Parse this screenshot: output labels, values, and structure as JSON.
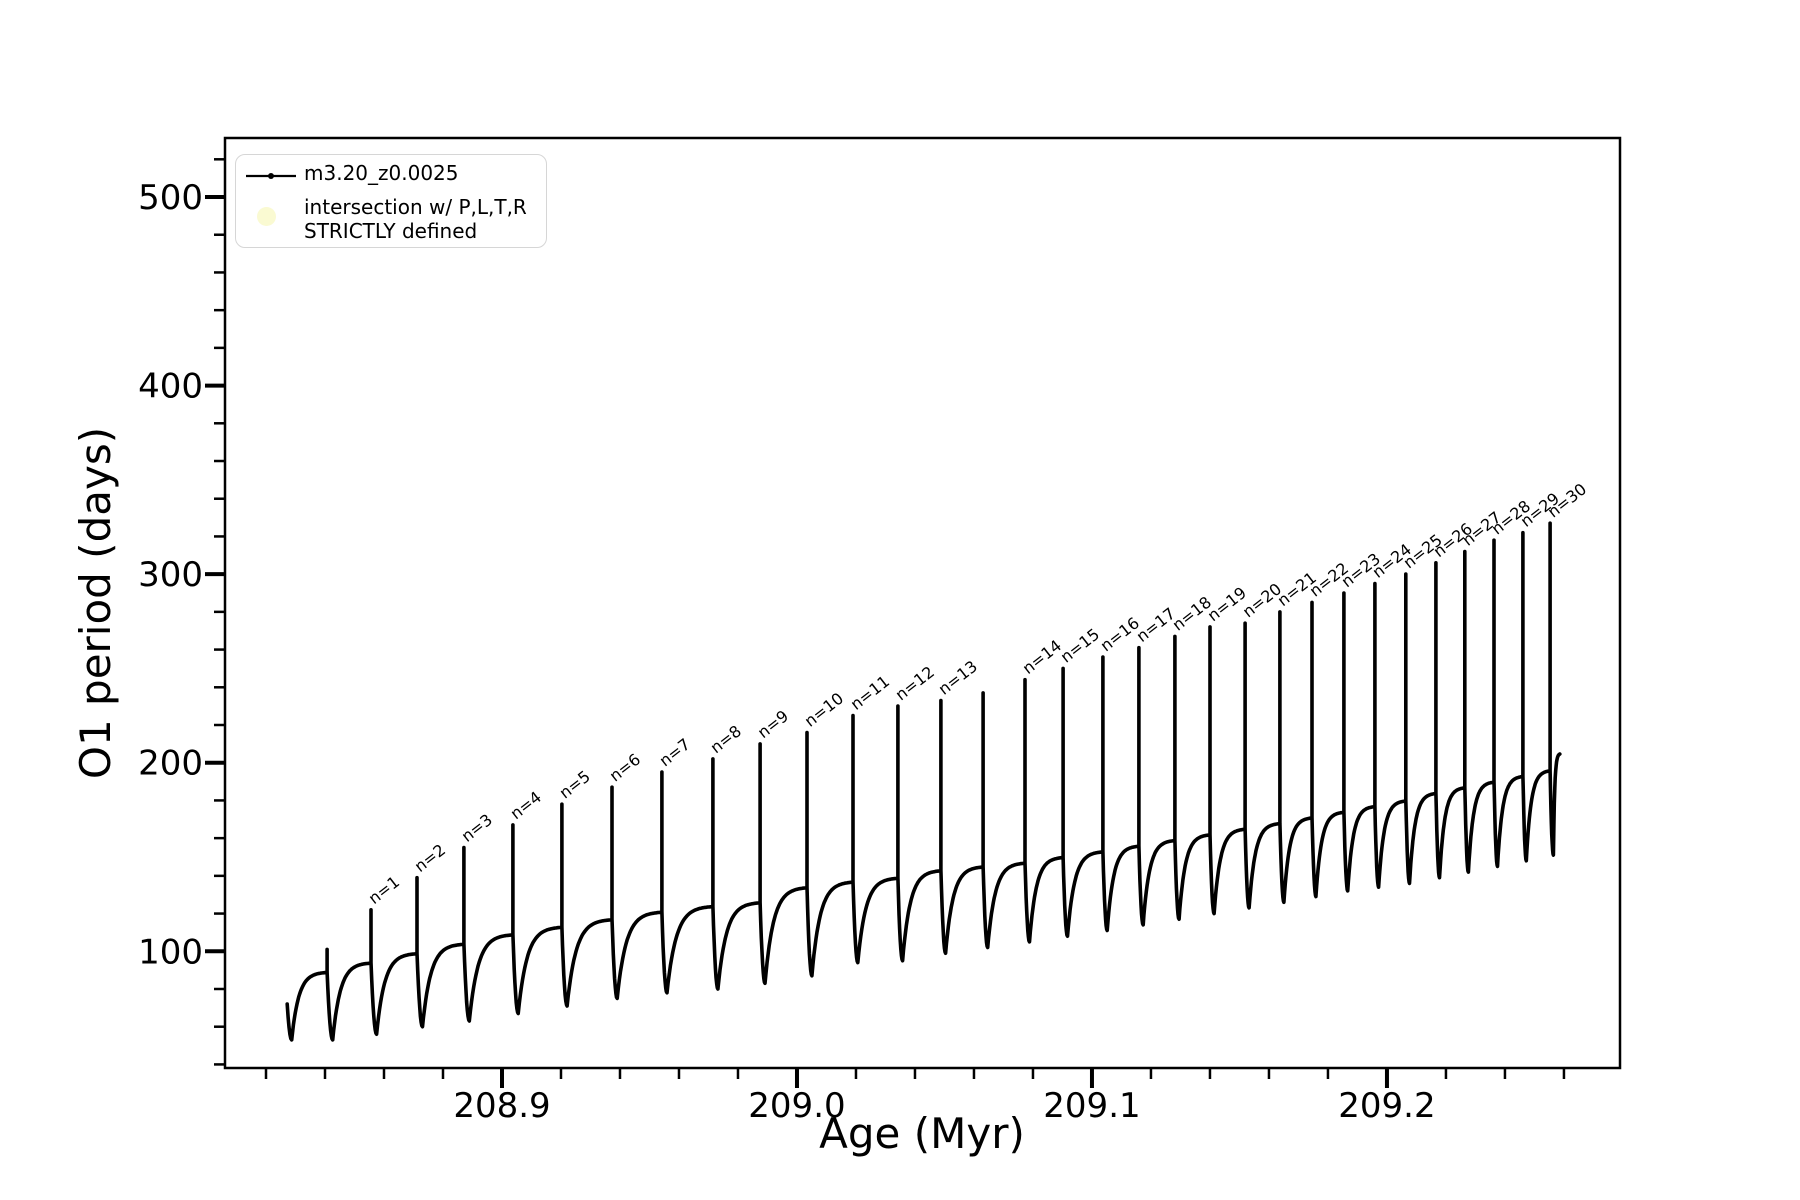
{
  "figure": {
    "background": "#ffffff",
    "series_color": "#000000"
  },
  "axes": {
    "xlabel": "Age (Myr)",
    "ylabel": "O1 period (days)",
    "xlim": [
      208.8061,
      209.279
    ],
    "ylim": [
      38.1,
      531.3
    ],
    "x_major_ticks": [
      208.9,
      209.0,
      209.1,
      209.2
    ],
    "x_major_labels": [
      "208.9",
      "209.0",
      "209.1",
      "209.2"
    ],
    "x_minor_start": 208.82,
    "x_minor_step": 0.02,
    "y_major_ticks": [
      100,
      200,
      300,
      400,
      500
    ],
    "y_major_labels": [
      "100",
      "200",
      "300",
      "400",
      "500"
    ],
    "y_minor_start": 40,
    "y_minor_step": 20,
    "spine_color": "#000000"
  },
  "legend": {
    "entries": [
      {
        "marker": "line-with-point",
        "color": "#000000",
        "label": "m3.20_z0.0025"
      },
      {
        "marker": "circle",
        "color": "#fafad2",
        "label_line1": "intersection w/ P,L,T,R",
        "label_line2": "STRICTLY defined"
      }
    ]
  },
  "chart_data": {
    "type": "line",
    "title": "",
    "xlabel": "Age (Myr)",
    "ylabel": "O1 period (days)",
    "xlim": [
      208.8061,
      209.279
    ],
    "ylim": [
      38.1,
      531.3
    ],
    "grid": false,
    "legend_position": "upper left",
    "series": [
      {
        "name": "m3.20_z0.0025",
        "color": "#000000",
        "marker": "point",
        "style": "solid"
      }
    ],
    "start_point": {
      "age": 208.8272,
      "period": 72
    },
    "initial_dip": {
      "age": 208.8287,
      "period": 53
    },
    "end_point": {
      "age": 209.2586,
      "period": 205
    },
    "spike_label_rotation_deg": -38,
    "cycles": [
      {
        "label": null,
        "spike_age": 208.8407,
        "spike_top": 101,
        "crest": 89,
        "dip_after": 53
      },
      {
        "label": "n=1",
        "spike_age": 208.8556,
        "spike_top": 122,
        "crest": 94,
        "dip_after": 56
      },
      {
        "label": "n=2",
        "spike_age": 208.8712,
        "spike_top": 139,
        "crest": 99,
        "dip_after": 60
      },
      {
        "label": "n=3",
        "spike_age": 208.8871,
        "spike_top": 155,
        "crest": 104,
        "dip_after": 63
      },
      {
        "label": "n=4",
        "spike_age": 208.9037,
        "spike_top": 167,
        "crest": 109,
        "dip_after": 67
      },
      {
        "label": "n=5",
        "spike_age": 208.9203,
        "spike_top": 178,
        "crest": 113,
        "dip_after": 71
      },
      {
        "label": "n=6",
        "spike_age": 208.9373,
        "spike_top": 187,
        "crest": 117,
        "dip_after": 75
      },
      {
        "label": "n=7",
        "spike_age": 208.9542,
        "spike_top": 195,
        "crest": 121,
        "dip_after": 78
      },
      {
        "label": "n=8",
        "spike_age": 208.9715,
        "spike_top": 202,
        "crest": 124,
        "dip_after": 80
      },
      {
        "label": "n=9",
        "spike_age": 208.9875,
        "spike_top": 210,
        "crest": 126,
        "dip_after": 83
      },
      {
        "label": "n=10",
        "spike_age": 209.0034,
        "spike_top": 216,
        "crest": 134,
        "dip_after": 87
      },
      {
        "label": "n=11",
        "spike_age": 209.019,
        "spike_top": 225,
        "crest": 137,
        "dip_after": 94
      },
      {
        "label": "n=12",
        "spike_age": 209.0342,
        "spike_top": 230,
        "crest": 139,
        "dip_after": 95
      },
      {
        "label": "n=13",
        "spike_age": 209.0488,
        "spike_top": 233,
        "crest": 143,
        "dip_after": 99
      },
      {
        "label": null,
        "spike_age": 209.0631,
        "spike_top": 237,
        "crest": 145,
        "dip_after": 102
      },
      {
        "label": "n=14",
        "spike_age": 209.0773,
        "spike_top": 244,
        "crest": 147,
        "dip_after": 105
      },
      {
        "label": "n=15",
        "spike_age": 209.0902,
        "spike_top": 250,
        "crest": 150,
        "dip_after": 108
      },
      {
        "label": "n=16",
        "spike_age": 209.1037,
        "spike_top": 256,
        "crest": 153,
        "dip_after": 111
      },
      {
        "label": "n=17",
        "spike_age": 209.1159,
        "spike_top": 261,
        "crest": 156,
        "dip_after": 114
      },
      {
        "label": "n=18",
        "spike_age": 209.1281,
        "spike_top": 267,
        "crest": 159,
        "dip_after": 117
      },
      {
        "label": "n=19",
        "spike_age": 209.14,
        "spike_top": 272,
        "crest": 162,
        "dip_after": 120
      },
      {
        "label": "n=20",
        "spike_age": 209.1519,
        "spike_top": 274,
        "crest": 165,
        "dip_after": 123
      },
      {
        "label": "n=21",
        "spike_age": 209.1637,
        "spike_top": 280,
        "crest": 168,
        "dip_after": 126
      },
      {
        "label": "n=22",
        "spike_age": 209.1746,
        "spike_top": 285,
        "crest": 171,
        "dip_after": 129
      },
      {
        "label": "n=23",
        "spike_age": 209.1854,
        "spike_top": 290,
        "crest": 174,
        "dip_after": 132
      },
      {
        "label": "n=24",
        "spike_age": 209.1959,
        "spike_top": 295,
        "crest": 177,
        "dip_after": 134
      },
      {
        "label": "n=25",
        "spike_age": 209.2064,
        "spike_top": 300,
        "crest": 180,
        "dip_after": 136
      },
      {
        "label": "n=26",
        "spike_age": 209.2166,
        "spike_top": 306,
        "crest": 184,
        "dip_after": 139
      },
      {
        "label": "n=27",
        "spike_age": 209.2264,
        "spike_top": 312,
        "crest": 187,
        "dip_after": 142
      },
      {
        "label": "n=28",
        "spike_age": 209.2363,
        "spike_top": 318,
        "crest": 190,
        "dip_after": 145
      },
      {
        "label": "n=29",
        "spike_age": 209.2461,
        "spike_top": 322,
        "crest": 193,
        "dip_after": 148
      },
      {
        "label": "n=30",
        "spike_age": 209.2553,
        "spike_top": 327,
        "crest": 196,
        "dip_after": 151
      }
    ]
  }
}
